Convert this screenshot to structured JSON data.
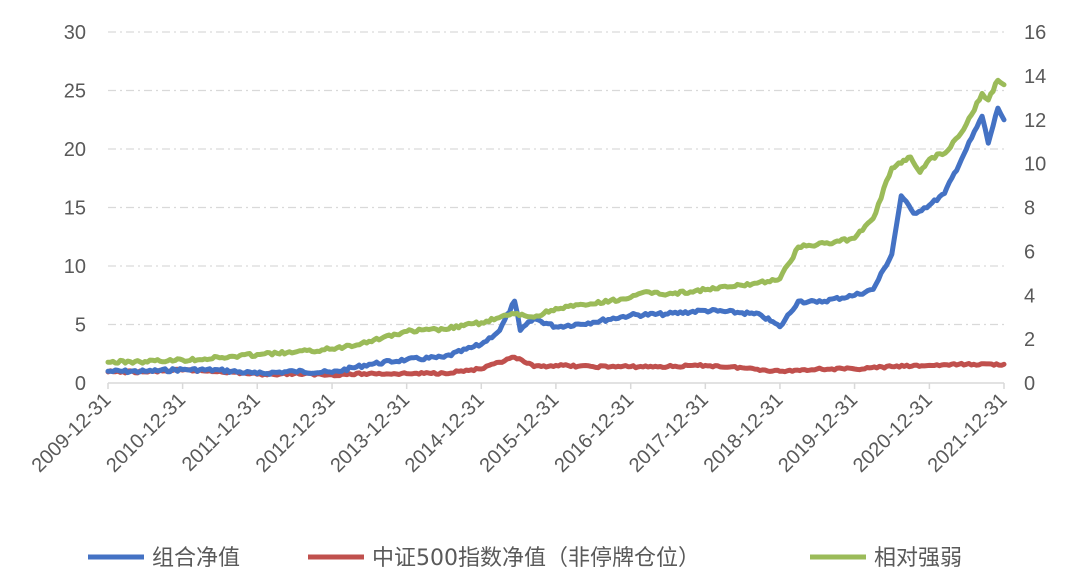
{
  "chart_data": {
    "type": "line",
    "title": "",
    "xlabel": "",
    "ylabel": "",
    "grid": true,
    "legend_position": "bottom",
    "x": [
      "2009-12-31",
      "2010-12-31",
      "2011-12-31",
      "2012-12-31",
      "2013-12-31",
      "2014-12-31",
      "2015-12-31",
      "2016-12-31",
      "2017-12-31",
      "2018-12-31",
      "2019-12-31",
      "2020-12-31",
      "2021-12-31"
    ],
    "xlim": [
      "2009-12-31",
      "2021-12-31"
    ],
    "y_left": {
      "ticks": [
        "0",
        "5",
        "10",
        "15",
        "20",
        "25",
        "30"
      ],
      "lim": [
        0,
        30
      ]
    },
    "y_right": {
      "ticks": [
        "0",
        "2",
        "4",
        "6",
        "8",
        "10",
        "12",
        "14",
        "16"
      ],
      "lim": [
        0,
        16
      ]
    },
    "series": [
      {
        "name": "组合净值",
        "color": "#4472C4",
        "axis": "left",
        "points": [
          [
            "2009-12-31",
            1.0
          ],
          [
            "2010-06-30",
            1.0
          ],
          [
            "2010-12-31",
            1.15
          ],
          [
            "2011-06-30",
            1.1
          ],
          [
            "2011-12-31",
            0.8
          ],
          [
            "2012-06-30",
            1.0
          ],
          [
            "2012-12-31",
            0.9
          ],
          [
            "2013-06-30",
            1.6
          ],
          [
            "2013-12-31",
            2.0
          ],
          [
            "2014-06-30",
            2.2
          ],
          [
            "2014-12-31",
            3.3
          ],
          [
            "2015-03-31",
            4.5
          ],
          [
            "2015-06-12",
            7.0
          ],
          [
            "2015-07-10",
            4.5
          ],
          [
            "2015-09-15",
            5.5
          ],
          [
            "2015-12-31",
            4.8
          ],
          [
            "2016-06-30",
            5.2
          ],
          [
            "2016-12-31",
            5.8
          ],
          [
            "2017-06-30",
            5.9
          ],
          [
            "2017-12-31",
            6.2
          ],
          [
            "2018-06-30",
            6.0
          ],
          [
            "2018-09-30",
            5.8
          ],
          [
            "2018-12-31",
            4.8
          ],
          [
            "2019-03-31",
            7.0
          ],
          [
            "2019-06-30",
            6.9
          ],
          [
            "2019-12-31",
            7.5
          ],
          [
            "2020-03-31",
            8.0
          ],
          [
            "2020-06-30",
            11.0
          ],
          [
            "2020-08-15",
            16.0
          ],
          [
            "2020-10-15",
            14.5
          ],
          [
            "2020-12-31",
            15.2
          ],
          [
            "2021-03-15",
            16.2
          ],
          [
            "2021-06-30",
            20.0
          ],
          [
            "2021-09-15",
            22.8
          ],
          [
            "2021-10-15",
            20.5
          ],
          [
            "2021-12-01",
            23.5
          ],
          [
            "2021-12-31",
            22.5
          ]
        ]
      },
      {
        "name": "中证500指数净值（非停牌仓位）",
        "color": "#C0504D",
        "axis": "left",
        "points": [
          [
            "2009-12-31",
            0.95
          ],
          [
            "2010-06-30",
            0.95
          ],
          [
            "2010-12-31",
            1.1
          ],
          [
            "2011-06-30",
            1.0
          ],
          [
            "2011-12-31",
            0.75
          ],
          [
            "2012-06-30",
            0.8
          ],
          [
            "2012-12-31",
            0.7
          ],
          [
            "2013-06-30",
            0.8
          ],
          [
            "2013-12-31",
            0.8
          ],
          [
            "2014-06-30",
            0.85
          ],
          [
            "2014-12-31",
            1.2
          ],
          [
            "2015-06-12",
            2.2
          ],
          [
            "2015-09-15",
            1.4
          ],
          [
            "2015-12-31",
            1.5
          ],
          [
            "2016-06-30",
            1.4
          ],
          [
            "2016-12-31",
            1.4
          ],
          [
            "2017-06-30",
            1.4
          ],
          [
            "2017-12-31",
            1.5
          ],
          [
            "2018-06-30",
            1.3
          ],
          [
            "2018-12-31",
            1.0
          ],
          [
            "2019-06-30",
            1.2
          ],
          [
            "2019-12-31",
            1.2
          ],
          [
            "2020-06-30",
            1.4
          ],
          [
            "2020-12-31",
            1.5
          ],
          [
            "2021-06-30",
            1.6
          ],
          [
            "2021-12-31",
            1.6
          ]
        ]
      },
      {
        "name": "相对强弱",
        "color": "#9BBB59",
        "axis": "right",
        "points": [
          [
            "2009-12-31",
            0.95
          ],
          [
            "2010-06-30",
            0.98
          ],
          [
            "2010-12-31",
            1.05
          ],
          [
            "2011-06-30",
            1.15
          ],
          [
            "2011-12-31",
            1.3
          ],
          [
            "2012-06-30",
            1.4
          ],
          [
            "2012-12-31",
            1.55
          ],
          [
            "2013-06-30",
            1.9
          ],
          [
            "2013-12-31",
            2.35
          ],
          [
            "2014-06-30",
            2.45
          ],
          [
            "2014-12-31",
            2.75
          ],
          [
            "2015-06-12",
            3.15
          ],
          [
            "2015-09-15",
            3.0
          ],
          [
            "2015-12-31",
            3.4
          ],
          [
            "2016-06-30",
            3.6
          ],
          [
            "2016-12-31",
            3.9
          ],
          [
            "2017-03-31",
            4.15
          ],
          [
            "2017-06-30",
            4.05
          ],
          [
            "2017-12-31",
            4.25
          ],
          [
            "2018-06-30",
            4.45
          ],
          [
            "2018-12-31",
            4.75
          ],
          [
            "2019-03-31",
            6.2
          ],
          [
            "2019-06-30",
            6.3
          ],
          [
            "2019-12-31",
            6.6
          ],
          [
            "2020-03-31",
            7.5
          ],
          [
            "2020-06-30",
            9.8
          ],
          [
            "2020-09-30",
            10.3
          ],
          [
            "2020-11-15",
            9.6
          ],
          [
            "2020-12-31",
            10.2
          ],
          [
            "2021-03-31",
            10.6
          ],
          [
            "2021-06-30",
            11.8
          ],
          [
            "2021-09-15",
            13.2
          ],
          [
            "2021-10-15",
            12.9
          ],
          [
            "2021-12-01",
            13.8
          ],
          [
            "2021-12-31",
            13.6
          ]
        ]
      }
    ]
  }
}
